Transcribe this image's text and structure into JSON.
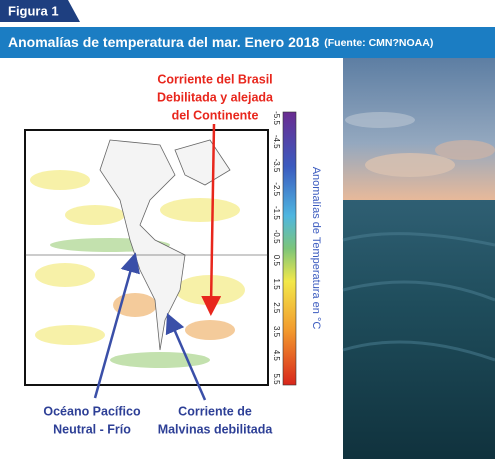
{
  "header": {
    "figure_label": "Figura 1",
    "title": "Anomalías de temperatura del mar. Enero 2018",
    "source": "(Fuente: CMN?NOAA)"
  },
  "annotations": {
    "brasil": [
      "Corriente del Brasil",
      "Debilitada y alejada",
      "del Continente"
    ],
    "pacifico": [
      "Océano Pacífico",
      "Neutral - Frío"
    ],
    "malvinas": [
      "Corriente de",
      "Malvinas debilitada"
    ]
  },
  "colorbar": {
    "label": "Anomalías de Temperatura en °C",
    "ticks": [
      "-5.5",
      "-4.5",
      "-3.5",
      "-2.5",
      "-1.5",
      "-0.5",
      "0.5",
      "1.5",
      "2.5",
      "3.5",
      "4.5",
      "5.5"
    ]
  }
}
